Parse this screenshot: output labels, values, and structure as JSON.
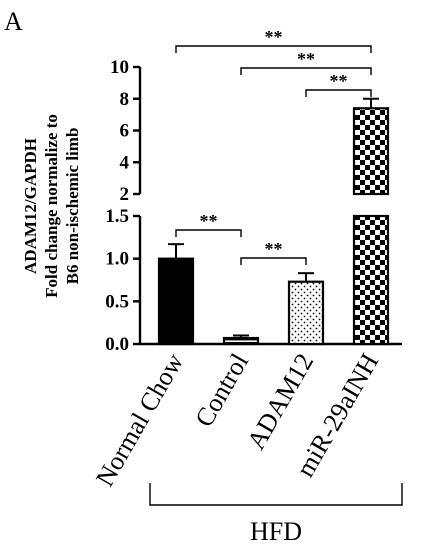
{
  "panel_label": "A",
  "chart_data": {
    "type": "bar",
    "title": "",
    "ylabel_lines": [
      "ADAM12/GAPDH",
      "Fold change normalize to",
      "B6 non-ischemic limb"
    ],
    "xlabel": "",
    "categories": [
      "Normal Chow",
      "Control",
      "ADAM12",
      "miR-29aINH"
    ],
    "values": [
      1.0,
      0.07,
      0.73,
      7.4
    ],
    "errors": [
      0.17,
      0.03,
      0.1,
      0.6
    ],
    "patterns": [
      "solid",
      "hlines",
      "dots",
      "checker"
    ],
    "broken_axis": {
      "lower_range": [
        0,
        1.5
      ],
      "lower_ticks": [
        "0.0",
        "0.5",
        "1.0",
        "1.5"
      ],
      "upper_range": [
        2,
        10
      ],
      "upper_ticks": [
        "2",
        "4",
        "6",
        "8",
        "10"
      ]
    },
    "group_label": "HFD",
    "group_members": [
      "Control",
      "ADAM12",
      "miR-29aINH"
    ],
    "significance": [
      {
        "from": "Normal Chow",
        "to": "miR-29aINH",
        "label": "**"
      },
      {
        "from": "Control",
        "to": "miR-29aINH",
        "label": "**"
      },
      {
        "from": "ADAM12",
        "to": "miR-29aINH",
        "label": "**"
      },
      {
        "from": "Normal Chow",
        "to": "Control",
        "label": "**"
      },
      {
        "from": "Control",
        "to": "ADAM12",
        "label": "**"
      }
    ]
  }
}
